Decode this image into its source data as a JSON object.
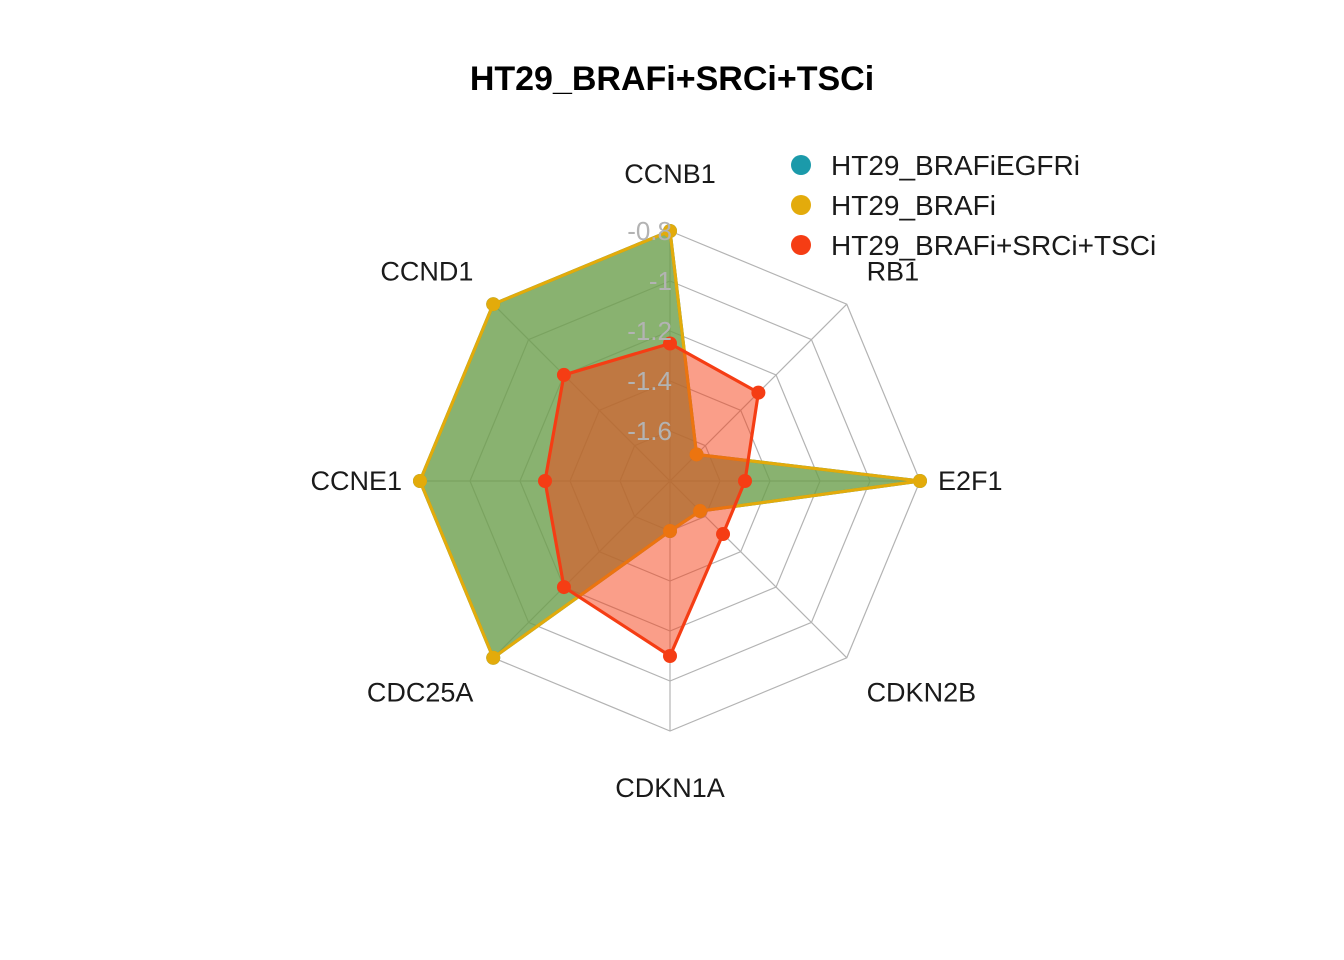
{
  "chart_data": {
    "type": "radar",
    "title": "HT29_BRAFi+SRCi+TSCi",
    "axes": [
      "CCNB1",
      "RB1",
      "E2F1",
      "CDKN2B",
      "CDKN1A",
      "CDC25A",
      "CCNE1",
      "CCND1"
    ],
    "ticks": [
      "-0.8",
      "-1",
      "-1.2",
      "-1.4",
      "-1.6"
    ],
    "range": [
      -1.8,
      -0.8
    ],
    "grid_levels": 5,
    "series": [
      {
        "name": "HT29_BRAFiEGFRi",
        "color": "#1b9aaa",
        "fill": "#1b9aaa",
        "values": [
          -0.8,
          -1.65,
          -0.8,
          -1.63,
          -1.6,
          -0.8,
          -0.8,
          -0.8
        ]
      },
      {
        "name": "HT29_BRAFi",
        "color": "#e3ab0b",
        "fill": "#8fa020",
        "values": [
          -0.8,
          -1.65,
          -0.8,
          -1.63,
          -1.6,
          -0.8,
          -0.8,
          -0.8
        ]
      },
      {
        "name": "HT29_BRAFi+SRCi+TSCi",
        "color": "#f53d14",
        "fill": "#f53d14",
        "values": [
          -1.25,
          -1.3,
          -1.5,
          -1.5,
          -1.1,
          -1.2,
          -1.3,
          -1.2
        ]
      }
    ],
    "legend_position": "top-right"
  }
}
